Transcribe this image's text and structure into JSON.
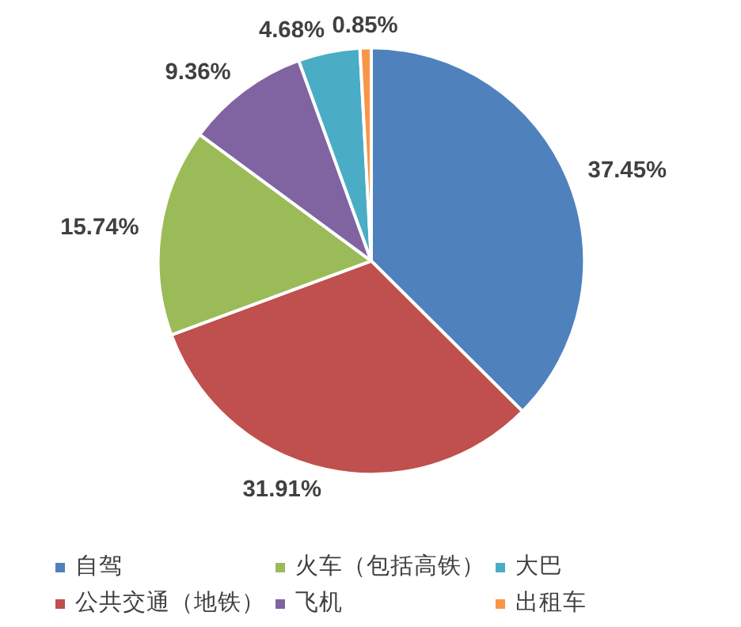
{
  "chart_data": {
    "type": "pie",
    "categories": [
      "自驾",
      "公共交通（地铁）",
      "火车（包括高铁）",
      "飞机",
      "大巴",
      "出租车"
    ],
    "values": [
      37.45,
      31.91,
      15.74,
      9.36,
      4.68,
      0.85
    ],
    "colors": [
      "#4f81bd",
      "#c0504d",
      "#9bbb59",
      "#8064a2",
      "#4bacc6",
      "#f79646"
    ],
    "value_labels": [
      "37.45%",
      "31.91%",
      "15.74%",
      "9.36%",
      "4.68%",
      "0.85%"
    ],
    "legend": "bottom"
  }
}
